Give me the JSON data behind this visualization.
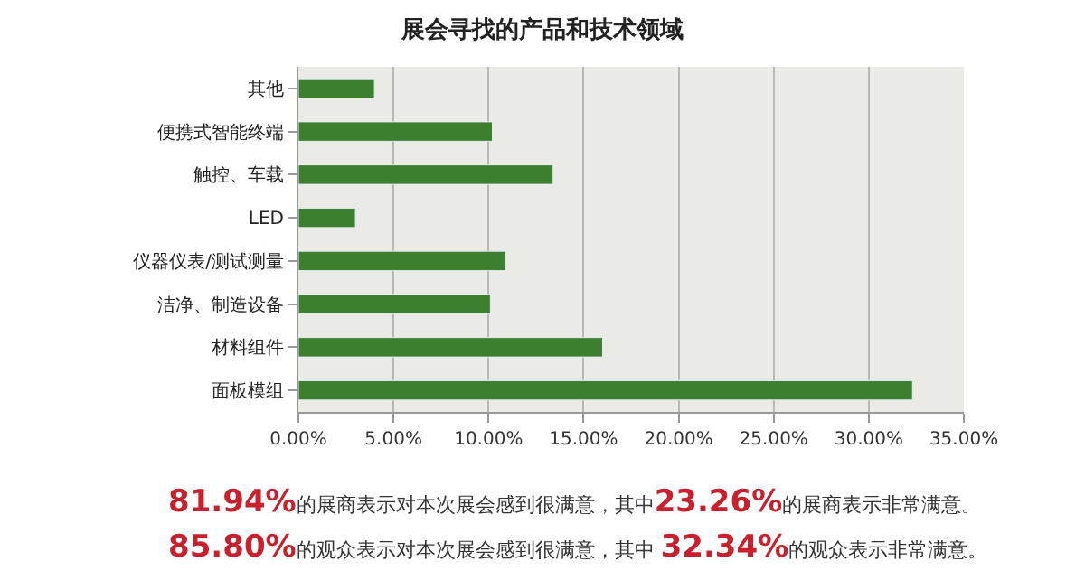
{
  "chart_data": {
    "type": "bar",
    "orientation": "horizontal",
    "title": "展会寻找的产品和技术领域",
    "categories": [
      "其他",
      "便携式智能终端",
      "触控、车载",
      "LED",
      "仪器仪表/测试测量",
      "洁净、制造设备",
      "材料组件",
      "面板模组"
    ],
    "values": [
      4.0,
      10.2,
      13.4,
      3.0,
      10.9,
      10.1,
      16.0,
      32.3
    ],
    "color": "#3b7f2f",
    "xlim": [
      0,
      35
    ],
    "xticks": [
      {
        "value": 0,
        "label": "0.00%"
      },
      {
        "value": 5,
        "label": "5.00%"
      },
      {
        "value": 10,
        "label": "10.00%"
      },
      {
        "value": 15,
        "label": "15.00%"
      },
      {
        "value": 20,
        "label": "20.00%"
      },
      {
        "value": 25,
        "label": "25.00%"
      },
      {
        "value": 30,
        "label": "30.00%"
      },
      {
        "value": 35,
        "label": "35.00%"
      }
    ],
    "grid": "x",
    "annotations": [
      "81.94%的展商表示对本次展会感到很满意，其中23.26%的展商表示非常满意。",
      "85.80%的观众表示对本次展会感到很满意，其中 32.34%的观众表示非常满意。"
    ]
  }
}
